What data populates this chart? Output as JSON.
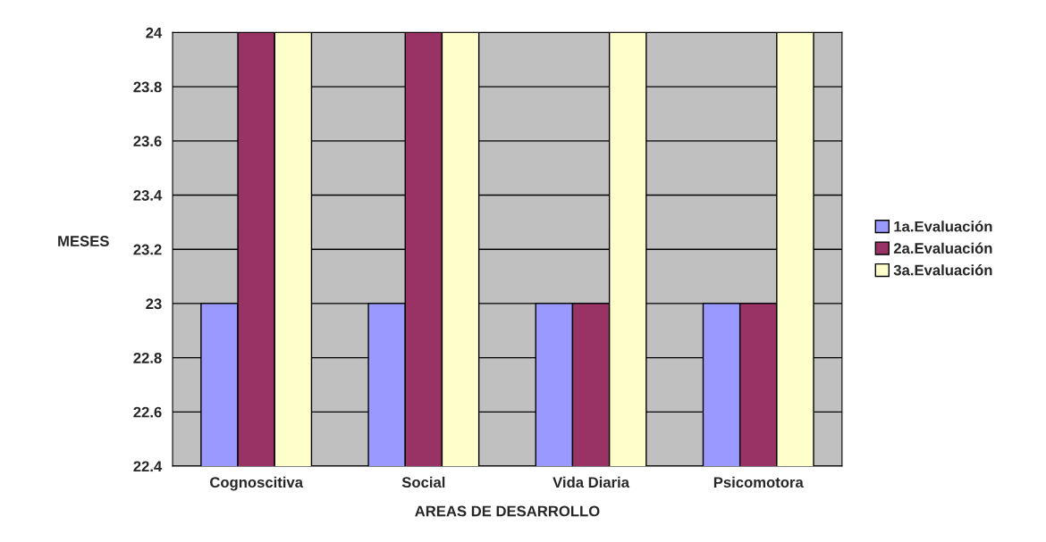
{
  "chart_data": {
    "type": "bar",
    "xlabel": "AREAS DE DESARROLLO",
    "ylabel": "MESES",
    "categories": [
      "Cognoscitiva",
      "Social",
      "Vida Diaria",
      "Psicomotora"
    ],
    "series": [
      {
        "name": "1a.Evaluación",
        "color": "#9999ff",
        "values": [
          23,
          23,
          23,
          23
        ]
      },
      {
        "name": "2a.Evaluación",
        "color": "#993366",
        "values": [
          24,
          24,
          23,
          23
        ]
      },
      {
        "name": "3a.Evaluación",
        "color": "#ffffcc",
        "values": [
          24,
          24,
          24,
          24
        ]
      }
    ],
    "ylim": [
      22.4,
      24
    ],
    "yticks": [
      22.4,
      22.6,
      22.8,
      23,
      23.2,
      23.4,
      23.6,
      23.8,
      24
    ],
    "grid": "y",
    "legend": "right"
  }
}
